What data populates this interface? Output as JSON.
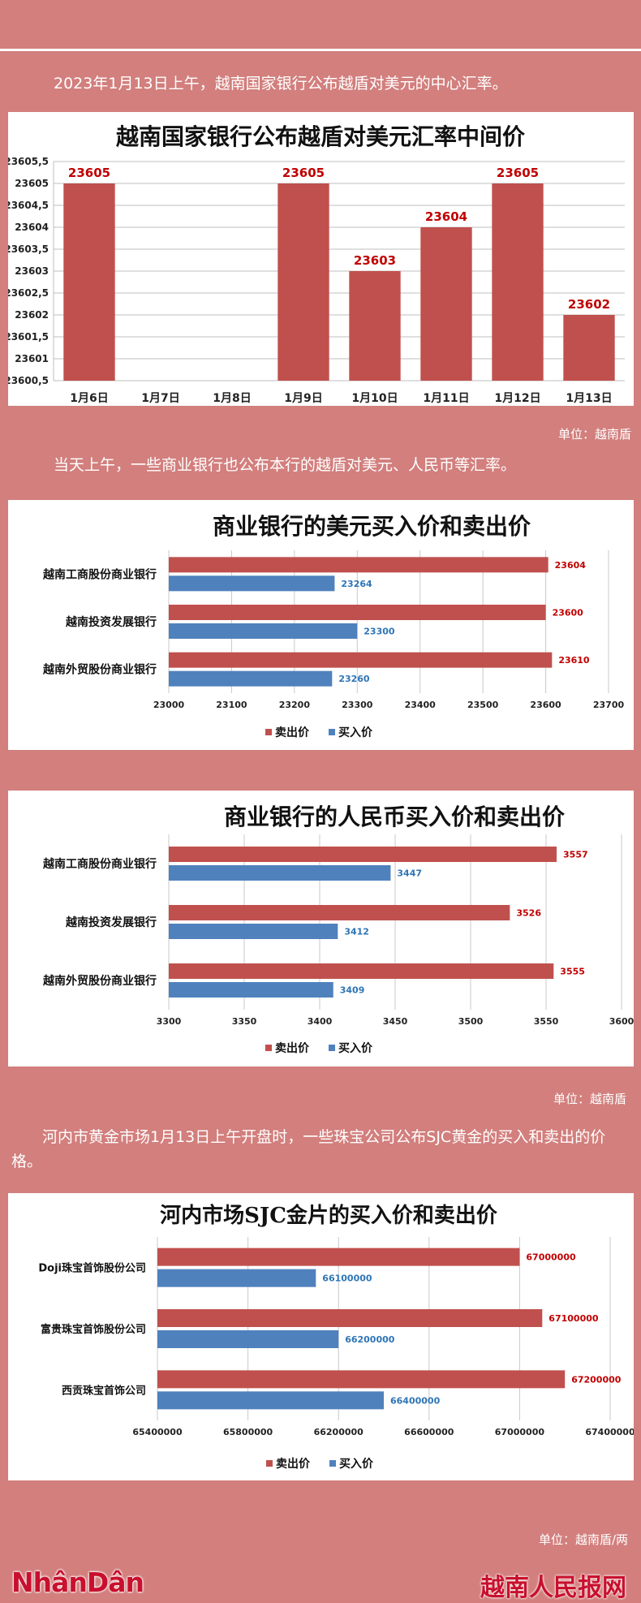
{
  "captions": {
    "c1": "2023年1月13日上午，越南国家银行公布越盾对美元的中心汇率。",
    "c2": "当天上午，一些商业银行也公布本行的越盾对美元、人民币等汇率。",
    "c3": "河内市黄金市场1月13日上午开盘时，一些珠宝公司公布SJC黄金的买入和卖出的价格。"
  },
  "units": {
    "u1": "单位：越南盾",
    "u2": "单位：越南盾",
    "u3": "单位：越南盾/两"
  },
  "footer": {
    "left": "NhânDân",
    "right": "越南人民报网"
  },
  "colors": {
    "background": "#d27f7d",
    "sell": "#c0504d",
    "buy": "#4f81bd",
    "sell_label": "#c00000",
    "buy_label": "#2e75b6"
  },
  "chart_data": [
    {
      "type": "bar",
      "title": "越南国家银行公布越盾对美元汇率中间价",
      "categories": [
        "1月6日",
        "1月7日",
        "1月8日",
        "1月9日",
        "1月10日",
        "1月11日",
        "1月12日",
        "1月13日"
      ],
      "values": [
        23605,
        null,
        null,
        23605,
        23603,
        23604,
        23605,
        23602
      ],
      "value_labels": [
        "23605",
        "",
        "",
        "23605",
        "23603",
        "23604",
        "23605",
        "23602"
      ],
      "ylim": [
        23600.5,
        23605.5
      ],
      "yticks": [
        "23605,5",
        "23605",
        "23604,5",
        "23604",
        "23603,5",
        "23603",
        "23602,5",
        "23602",
        "23601,5",
        "23601",
        "23600,5"
      ],
      "grid": true
    },
    {
      "type": "bar",
      "orientation": "horizontal",
      "title": "商业银行的美元买入价和卖出价",
      "categories": [
        "越南工商股份商业银行",
        "越南投资发展银行",
        "越南外贸股份商业银行"
      ],
      "series": [
        {
          "name": "卖出价",
          "values": [
            23604,
            23600,
            23610
          ]
        },
        {
          "name": "买入价",
          "values": [
            23264,
            23300,
            23260
          ]
        }
      ],
      "xlim": [
        23000,
        23700
      ],
      "xticks": [
        "23000",
        "23100",
        "23200",
        "23300",
        "23400",
        "23500",
        "23600",
        "23700"
      ],
      "legend": "bottom",
      "grid": true
    },
    {
      "type": "bar",
      "orientation": "horizontal",
      "title": "商业银行的人民币买入价和卖出价",
      "categories": [
        "越南工商股份商业银行",
        "越南投资发展银行",
        "越南外贸股份商业银行"
      ],
      "series": [
        {
          "name": "卖出价",
          "values": [
            3557,
            3526,
            3555
          ]
        },
        {
          "name": "买入价",
          "values": [
            3447,
            3412,
            3409
          ]
        }
      ],
      "xlim": [
        3300,
        3600
      ],
      "xticks": [
        "3300",
        "3350",
        "3400",
        "3450",
        "3500",
        "3550",
        "3600"
      ],
      "legend": "bottom",
      "grid": true
    },
    {
      "type": "bar",
      "orientation": "horizontal",
      "title": "河内市场SJC金片的买入价和卖出价",
      "categories": [
        "Doji珠宝首饰股份公司",
        "富贵珠宝首饰股份公司",
        "西贡珠宝首饰公司"
      ],
      "series": [
        {
          "name": "卖出价",
          "values": [
            67000000,
            67100000,
            67200000
          ]
        },
        {
          "name": "买入价",
          "values": [
            66100000,
            66200000,
            66400000
          ]
        }
      ],
      "xlim": [
        65400000,
        67400000
      ],
      "xticks": [
        "65400000",
        "65800000",
        "66200000",
        "66600000",
        "67000000",
        "67400000"
      ],
      "legend": "bottom",
      "grid": true
    }
  ]
}
